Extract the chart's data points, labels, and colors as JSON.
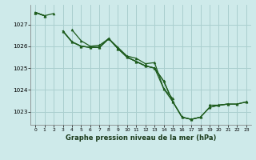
{
  "background_color": "#ceeaea",
  "grid_color": "#aacfcf",
  "line_color": "#1e5c1e",
  "title": "Graphe pression niveau de la mer (hPa)",
  "xlim": [
    -0.5,
    23.5
  ],
  "ylim": [
    1022.4,
    1027.9
  ],
  "yticks": [
    1023,
    1024,
    1025,
    1026,
    1027
  ],
  "xticks": [
    0,
    1,
    2,
    3,
    4,
    5,
    6,
    7,
    8,
    9,
    10,
    11,
    12,
    13,
    14,
    15,
    16,
    17,
    18,
    19,
    20,
    21,
    22,
    23
  ],
  "series": [
    [
      1027.55,
      1027.4,
      1027.5,
      null,
      1026.75,
      1026.25,
      1026.0,
      1026.05,
      1026.35,
      1025.95,
      1025.55,
      1025.45,
      1025.2,
      1025.25,
      1024.05,
      1023.6,
      null,
      null,
      null,
      1023.3,
      1023.3,
      1023.35,
      null,
      1023.45
    ],
    [
      1027.55,
      1027.4,
      null,
      1026.7,
      1026.2,
      1026.0,
      1025.95,
      1025.95,
      1026.35,
      1025.9,
      1025.5,
      1025.3,
      1025.1,
      1025.0,
      1024.4,
      1023.45,
      1022.75,
      1022.65,
      1022.75,
      null,
      null,
      null,
      null,
      null
    ],
    [
      1027.55,
      1027.4,
      null,
      1026.7,
      1026.2,
      1026.0,
      1025.95,
      1025.95,
      1026.35,
      1025.9,
      1025.5,
      1025.3,
      1025.1,
      1025.0,
      1024.4,
      1023.45,
      1022.75,
      1022.65,
      1022.75,
      1023.2,
      1023.3,
      1023.35,
      1023.35,
      1023.45
    ],
    [
      1027.55,
      1027.4,
      null,
      1026.7,
      1026.2,
      1026.0,
      1025.95,
      1025.95,
      1026.35,
      1025.9,
      1025.5,
      1025.3,
      1025.1,
      1025.0,
      1024.05,
      1023.45,
      1022.75,
      1022.65,
      1022.75,
      1023.2,
      1023.3,
      1023.35,
      1023.35,
      1023.45
    ]
  ]
}
